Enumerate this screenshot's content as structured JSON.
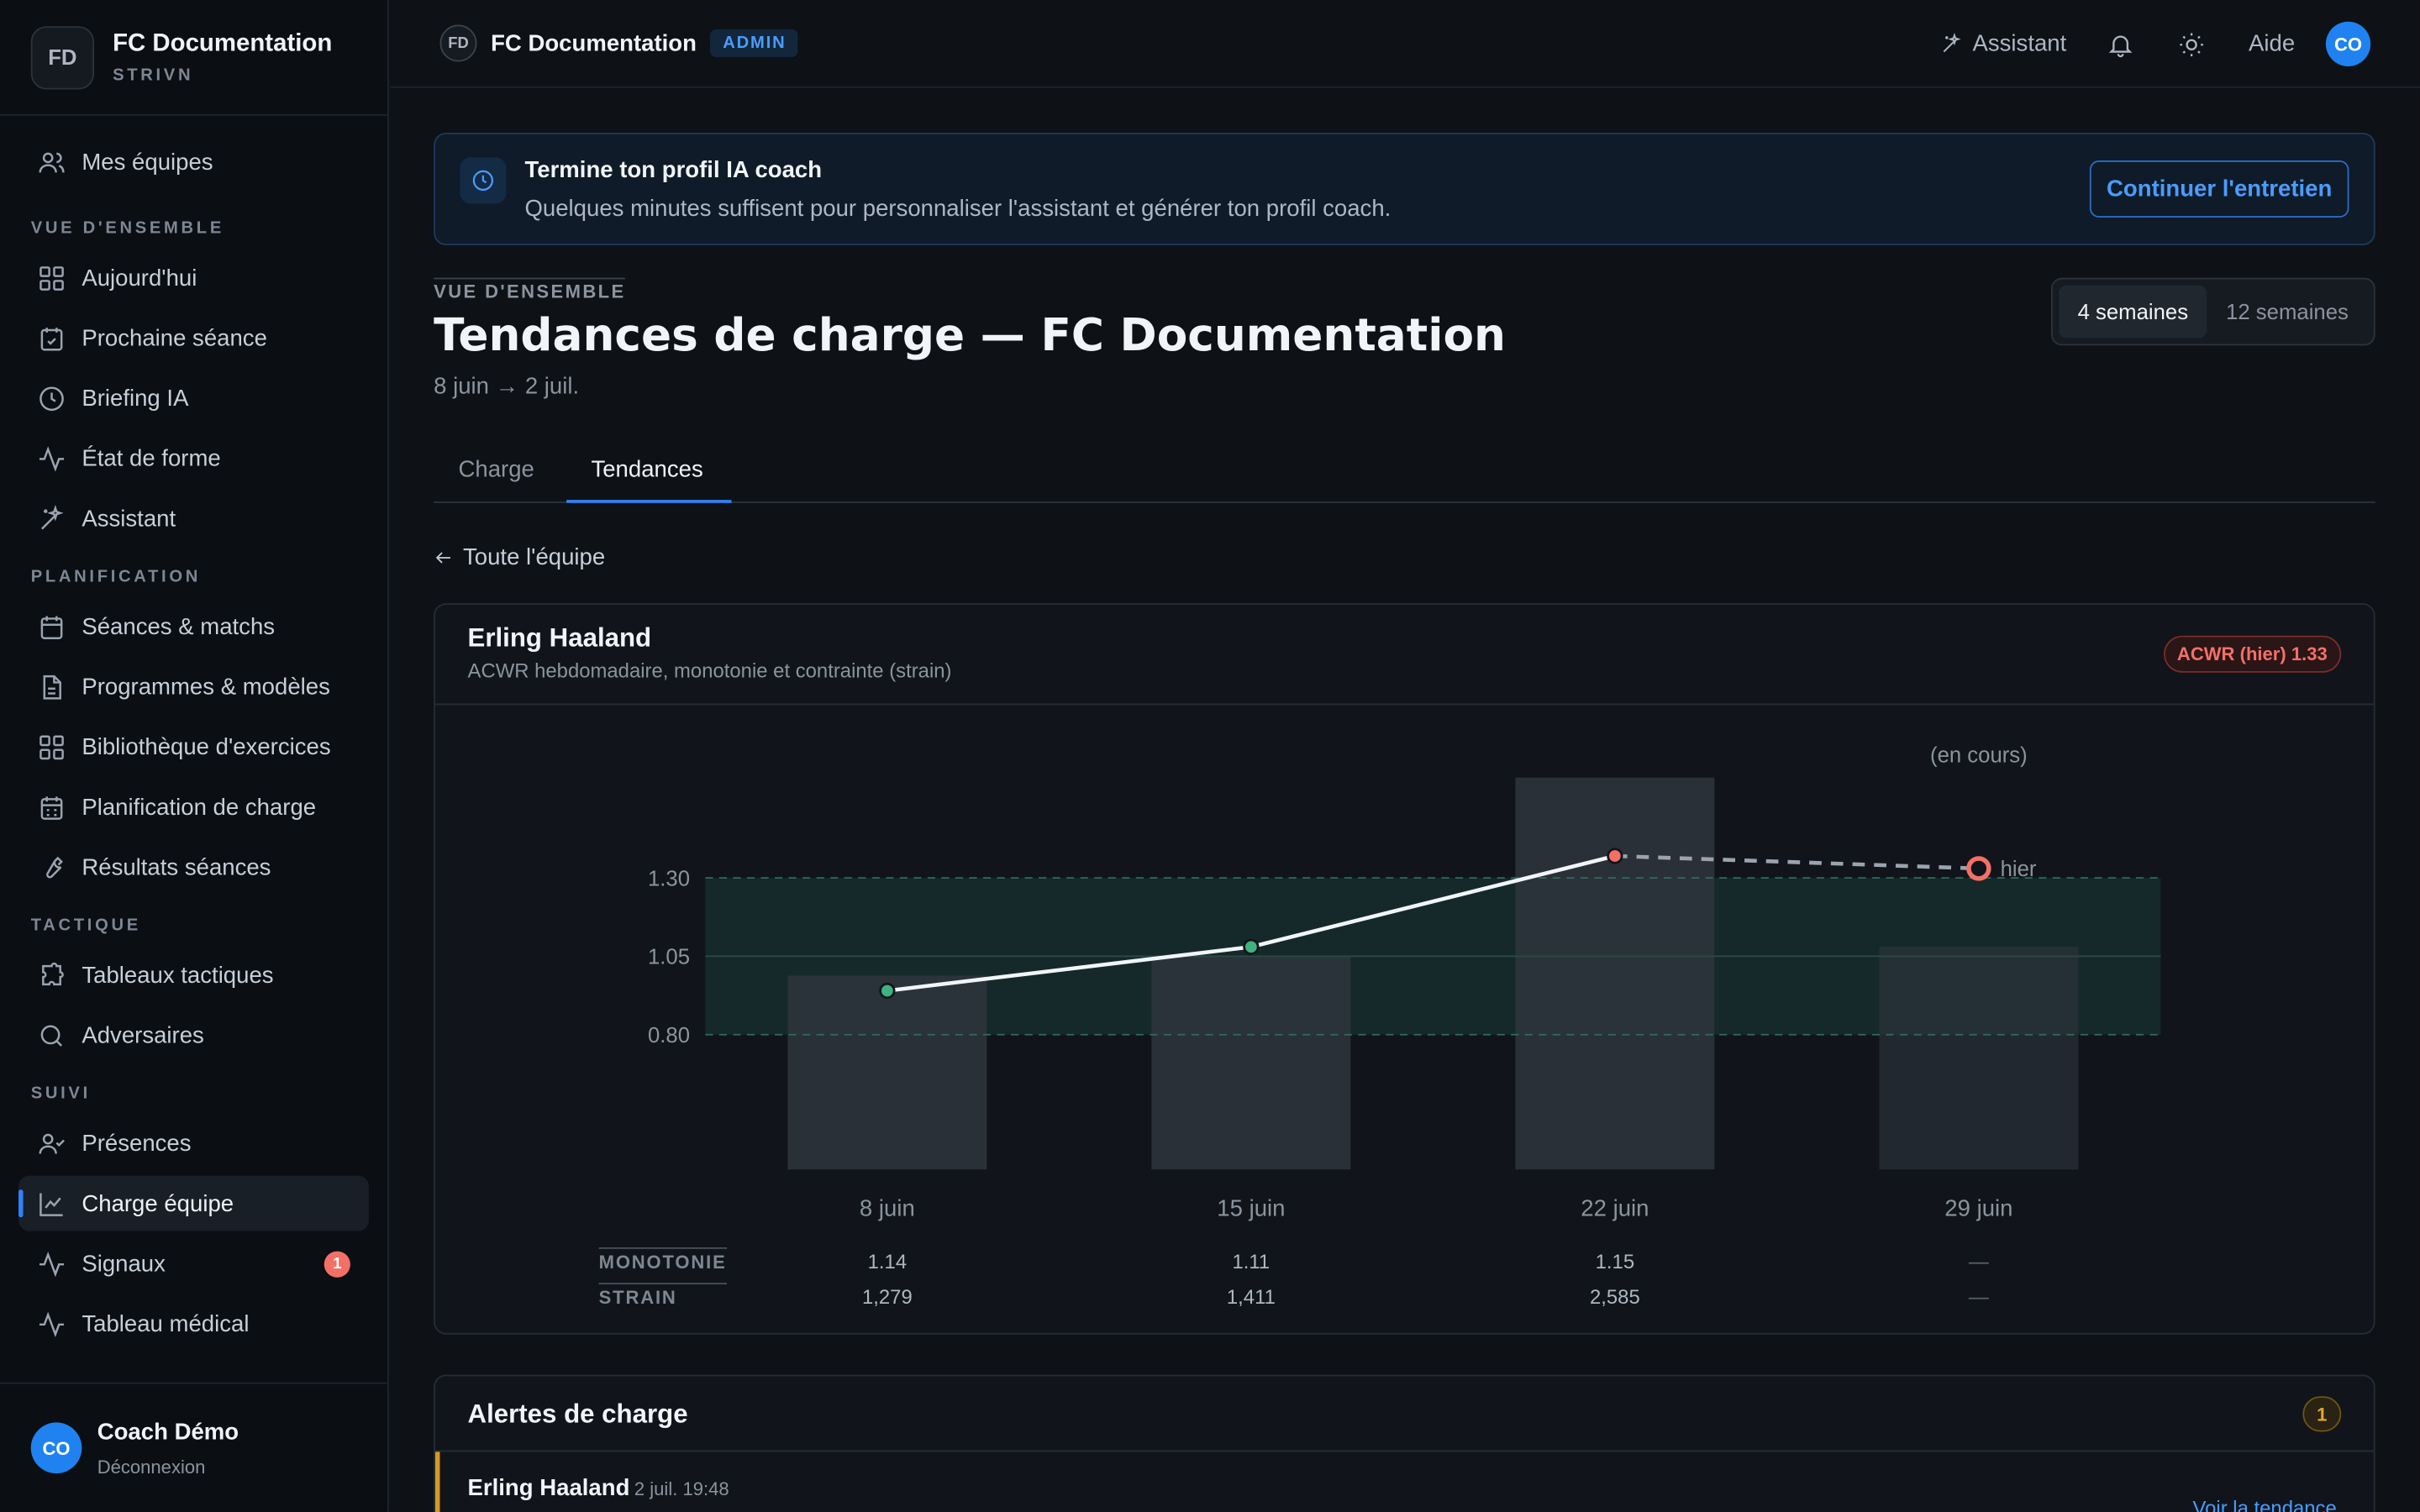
{
  "sidebar": {
    "brand_initials": "FD",
    "brand_title": "FC Documentation",
    "brand_subtitle": "STRIVN",
    "top_item": {
      "label": "Mes équipes",
      "icon": "users-icon"
    },
    "sections": [
      {
        "title": "VUE D'ENSEMBLE",
        "items": [
          {
            "label": "Aujourd'hui",
            "icon": "grid-icon"
          },
          {
            "label": "Prochaine séance",
            "icon": "calendar-check-icon"
          },
          {
            "label": "Briefing IA",
            "icon": "clock-icon"
          },
          {
            "label": "État de forme",
            "icon": "activity-icon"
          },
          {
            "label": "Assistant",
            "icon": "sparkles-icon"
          }
        ]
      },
      {
        "title": "PLANIFICATION",
        "items": [
          {
            "label": "Séances & matchs",
            "icon": "calendar-icon"
          },
          {
            "label": "Programmes & modèles",
            "icon": "file-icon"
          },
          {
            "label": "Bibliothèque d'exercices",
            "icon": "grid-icon"
          },
          {
            "label": "Planification de charge",
            "icon": "calendar-grid-icon"
          },
          {
            "label": "Résultats séances",
            "icon": "wrench-icon"
          }
        ]
      },
      {
        "title": "TACTIQUE",
        "items": [
          {
            "label": "Tableaux tactiques",
            "icon": "puzzle-icon"
          },
          {
            "label": "Adversaires",
            "icon": "search-icon"
          }
        ]
      },
      {
        "title": "SUIVI",
        "items": [
          {
            "label": "Présences",
            "icon": "user-check-icon"
          },
          {
            "label": "Charge équipe",
            "icon": "line-chart-icon",
            "active": true
          },
          {
            "label": "Signaux",
            "icon": "activity-icon",
            "badge": "1"
          },
          {
            "label": "Tableau médical",
            "icon": "activity-icon"
          }
        ]
      }
    ],
    "user": {
      "initials": "CO",
      "name": "Coach Démo",
      "logout": "Déconnexion"
    }
  },
  "topbar": {
    "initials": "FD",
    "title": "FC Documentation",
    "badge": "ADMIN",
    "assistant": "Assistant",
    "help": "Aide",
    "user_initials": "CO"
  },
  "banner": {
    "title": "Termine ton profil IA coach",
    "text": "Quelques minutes suffisent pour personnaliser l'assistant et générer ton profil coach.",
    "button": "Continuer l'entretien"
  },
  "header": {
    "eyebrow": "VUE D'ENSEMBLE",
    "title": "Tendances de charge — FC Documentation",
    "range": "8 juin → 2 juil.",
    "range_options": [
      "4 semaines",
      "12 semaines"
    ],
    "range_selected": "4 semaines"
  },
  "tabs": [
    "Charge",
    "Tendances"
  ],
  "back_link": "Toute l'équipe",
  "card": {
    "title": "Erling Haaland",
    "subtitle": "ACWR hebdomadaire, monotonie et contrainte (strain)",
    "badge": "ACWR (hier) 1.33"
  },
  "chart_data": {
    "type": "bar",
    "categories": [
      "8 juin",
      "15 juin",
      "22 juin",
      "29 juin"
    ],
    "bar_values": [
      1279,
      1411,
      2585,
      1470
    ],
    "acwr": [
      0.94,
      1.08,
      1.37,
      1.33
    ],
    "acwr_status": [
      "ok",
      "ok",
      "high",
      "high"
    ],
    "acwr_ticks": [
      "1.30",
      "1.05",
      "0.80"
    ],
    "acwr_band": [
      0.8,
      1.3
    ],
    "acwr_ylim": [
      0.37,
      1.62
    ],
    "in_progress_label": "(en cours)",
    "yesterday_label": "hier",
    "rows": [
      {
        "label": "MONOTONIE",
        "values": [
          "1.14",
          "1.11",
          "1.15",
          "—"
        ]
      },
      {
        "label": "STRAIN",
        "values": [
          "1,279",
          "1,411",
          "2,585",
          "—"
        ]
      }
    ],
    "colors": {
      "ok": "#3fb27f",
      "high": "#f47067",
      "band": "#1a3a36",
      "bar": "#2f353d",
      "line": "#f2f5f8"
    }
  },
  "alerts": {
    "title": "Alertes de charge",
    "count": "1",
    "items": [
      {
        "name": "Erling Haaland",
        "time": "2 juil. 19:48",
        "link": "Voir la tendance"
      }
    ]
  }
}
